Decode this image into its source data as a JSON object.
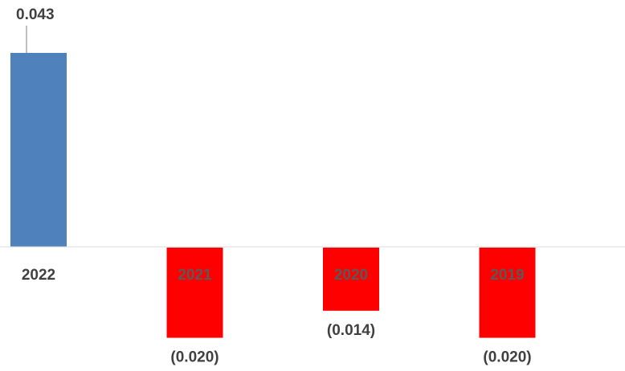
{
  "chart_data": {
    "type": "bar",
    "categories": [
      "2022",
      "2021",
      "2020",
      "2019"
    ],
    "values": [
      0.043,
      -0.02,
      -0.014,
      -0.02
    ],
    "data_labels": [
      "0.043",
      "(0.020)",
      "(0.014)",
      "(0.020)"
    ],
    "title": "",
    "xlabel": "",
    "ylabel": "",
    "ylim": [
      -0.022,
      0.052
    ],
    "grid": false,
    "legend": "none"
  },
  "colors": {
    "positive": "#4f81bd",
    "negative": "#ff0000",
    "axis": "#d9d9d9",
    "label_text": "#404040",
    "category_on_negative": "#595959"
  }
}
